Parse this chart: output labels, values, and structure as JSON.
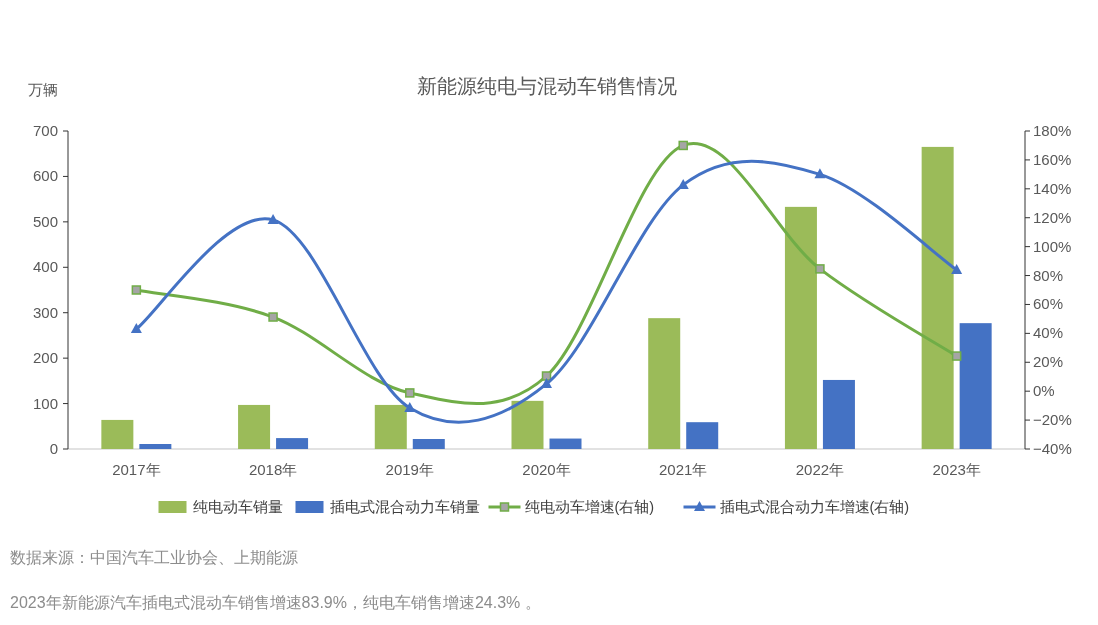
{
  "chart_data": {
    "type": "bar",
    "title": "新能源纯电与混动车销售情况",
    "ylabel": "万辆",
    "categories": [
      "2017年",
      "2018年",
      "2019年",
      "2020年",
      "2021年",
      "2022年",
      "2023年"
    ],
    "series": [
      {
        "name": "纯电动车销量",
        "color": "#9bbb59",
        "values": [
          64,
          97,
          97,
          106,
          288,
          533,
          665
        ]
      },
      {
        "name": "插电式混合动力车销量",
        "color": "#4472c4",
        "values": [
          11,
          24,
          22,
          23,
          59,
          152,
          277
        ]
      },
      {
        "name": "纯电动车增速(右轴)",
        "type": "line",
        "axis": "y2",
        "color": "#70ad47",
        "marker": "square",
        "values": [
          70,
          51.3,
          -1.2,
          10.5,
          170,
          84.6,
          24.3
        ]
      },
      {
        "name": "插电式混合动力车增速(右轴)",
        "type": "line",
        "axis": "y2",
        "color": "#4472c4",
        "marker": "triangle",
        "values": [
          43,
          118.5,
          -11.6,
          5,
          142.7,
          150,
          83.9
        ]
      }
    ],
    "ylim": [
      0,
      700
    ],
    "yticks": [
      0,
      100,
      200,
      300,
      400,
      500,
      600,
      700
    ],
    "y2lim": [
      -40,
      180
    ],
    "y2ticks": [
      {
        "value": -40,
        "label": "−40%"
      },
      {
        "value": -20,
        "label": "−20%"
      },
      {
        "value": 0,
        "label": "0%"
      },
      {
        "value": 20,
        "label": "20%"
      },
      {
        "value": 40,
        "label": "40%"
      },
      {
        "value": 60,
        "label": "60%"
      },
      {
        "value": 80,
        "label": "80%"
      },
      {
        "value": 100,
        "label": "100%"
      },
      {
        "value": 120,
        "label": "120%"
      },
      {
        "value": 140,
        "label": "140%"
      },
      {
        "value": 160,
        "label": "160%"
      },
      {
        "value": 180,
        "label": "180%"
      }
    ],
    "legend": "bottom",
    "grid": false,
    "annotations": [
      "数据来源：中国汽车工业协会、上期能源",
      "2023年新能源汽车插电式混动车销售增速83.9%，纯电车销售增速24.3% 。"
    ]
  }
}
